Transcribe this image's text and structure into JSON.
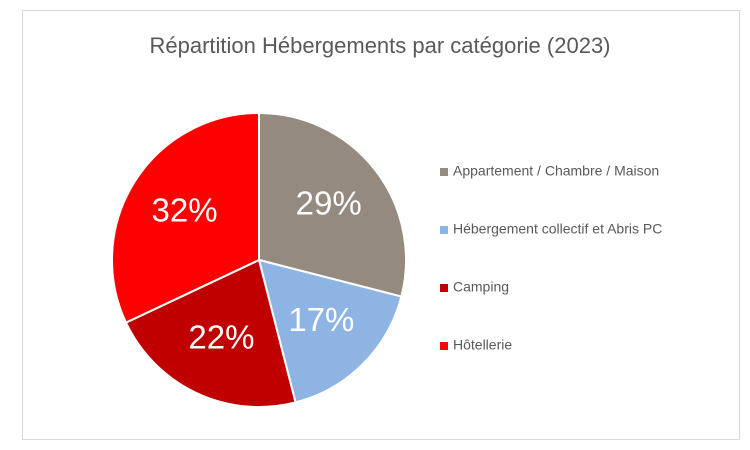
{
  "chart_data": {
    "type": "pie",
    "title": "Répartition Hébergements par catégorie (2023)",
    "categories": [
      "Appartement / Chambre / Maison",
      "Hébergement collectif et Abris PC",
      "Camping",
      "Hôtellerie"
    ],
    "values": [
      29,
      17,
      22,
      32
    ],
    "value_labels": [
      "29%",
      "17%",
      "22%",
      "32%"
    ],
    "colors": [
      "#948a80",
      "#8db4e2",
      "#c00000",
      "#ff0000"
    ],
    "legend": "right"
  }
}
